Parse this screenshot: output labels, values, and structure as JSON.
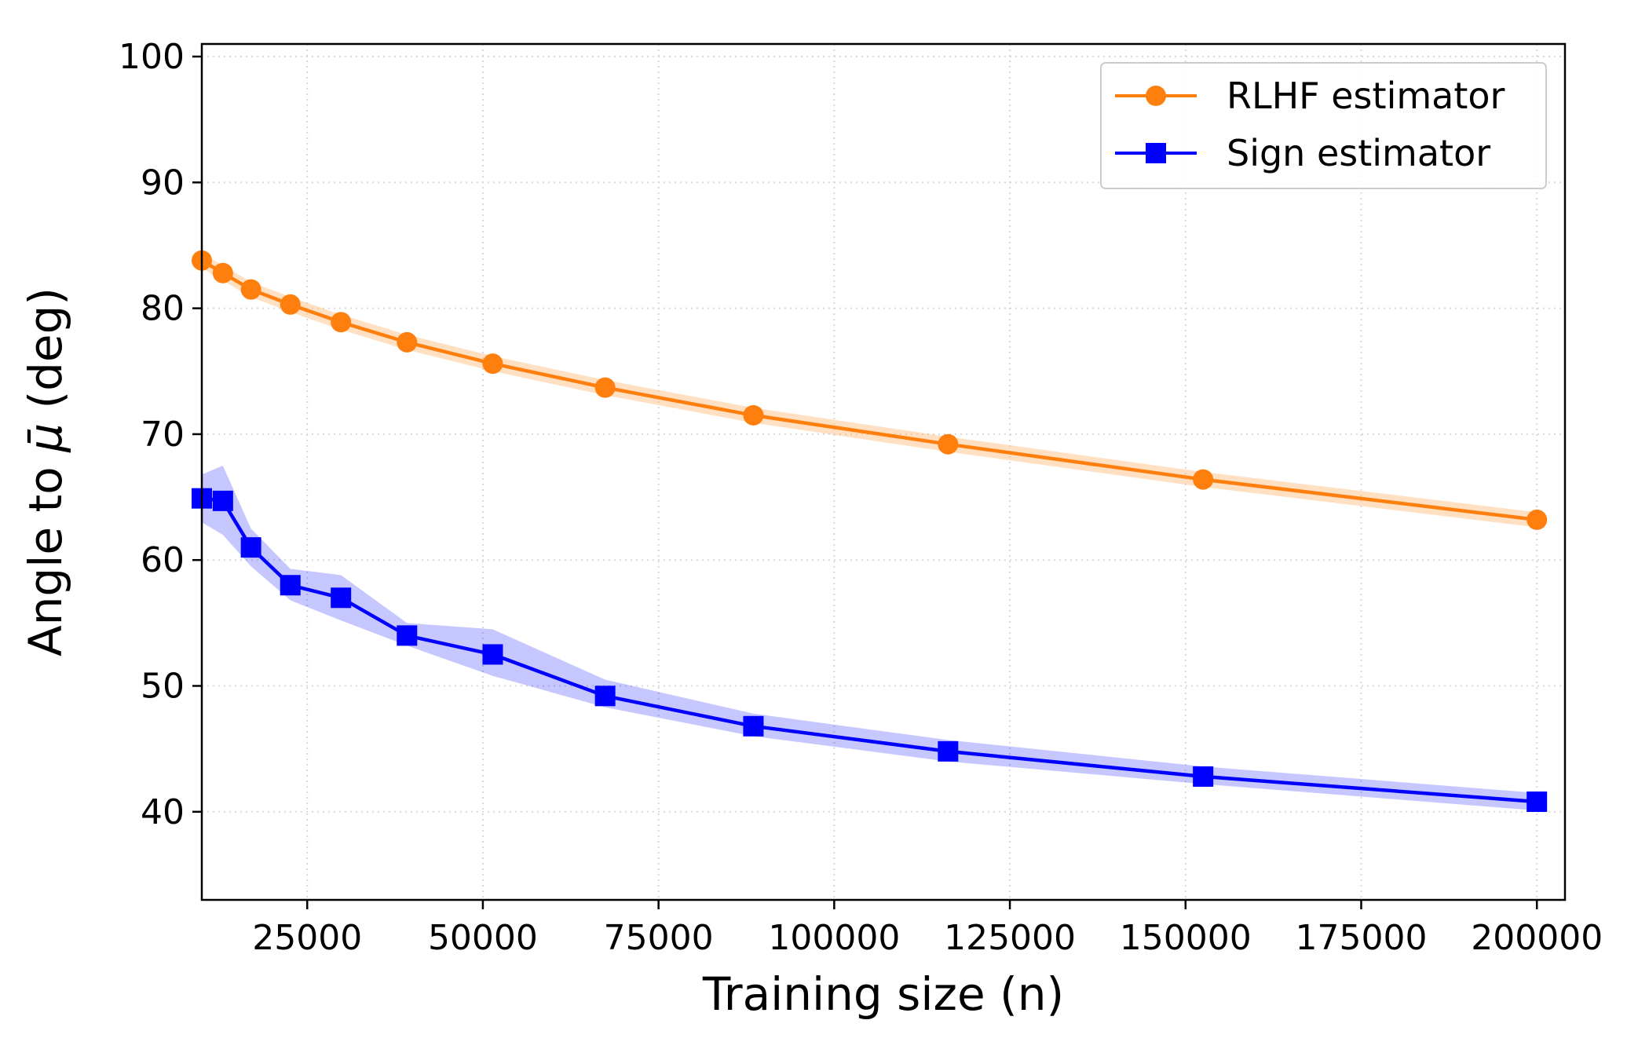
{
  "chart_data": {
    "type": "line",
    "title": "",
    "xlabel": "Training size (n)",
    "ylabel_prefix": "Angle to ",
    "ylabel_symbol": "μ̄",
    "ylabel_suffix": " (deg)",
    "xlim": [
      10000,
      204000
    ],
    "ylim": [
      33,
      101
    ],
    "xticks": [
      25000,
      50000,
      75000,
      100000,
      125000,
      150000,
      175000,
      200000
    ],
    "xtick_labels": [
      "25000",
      "50000",
      "75000",
      "100000",
      "125000",
      "150000",
      "175000",
      "200000"
    ],
    "yticks": [
      40,
      50,
      60,
      70,
      80,
      90,
      100
    ],
    "ytick_labels": [
      "40",
      "50",
      "60",
      "70",
      "80",
      "90",
      "100"
    ],
    "grid": true,
    "legend_position": "top-right",
    "x": [
      10000,
      13000,
      17000,
      22600,
      29800,
      39200,
      51400,
      67400,
      88500,
      116200,
      152500,
      200000
    ],
    "series": [
      {
        "name": "RLHF estimator",
        "color": "#ff7f0e",
        "band_color": "#ffbb78",
        "marker": "circle",
        "values": [
          83.8,
          82.8,
          81.5,
          80.3,
          78.9,
          77.3,
          75.6,
          73.7,
          71.5,
          69.2,
          66.4,
          63.2
        ],
        "lower": [
          83.2,
          82.2,
          80.9,
          79.7,
          78.3,
          76.7,
          75.0,
          73.1,
          70.9,
          68.6,
          65.8,
          62.6
        ],
        "upper": [
          84.4,
          83.4,
          82.1,
          80.9,
          79.5,
          77.9,
          76.2,
          74.3,
          72.1,
          69.8,
          67.0,
          63.8
        ]
      },
      {
        "name": "Sign estimator",
        "color": "#0000ff",
        "band_color": "#0000ff",
        "marker": "square",
        "values": [
          64.9,
          64.7,
          61.0,
          58.0,
          57.0,
          54.0,
          52.5,
          49.2,
          46.8,
          44.8,
          42.8,
          40.8
        ],
        "lower": [
          63.0,
          62.0,
          59.5,
          56.8,
          55.2,
          53.2,
          50.8,
          48.3,
          46.0,
          44.0,
          42.2,
          40.1
        ],
        "upper": [
          66.8,
          67.5,
          62.5,
          59.3,
          58.8,
          55.0,
          54.5,
          50.5,
          47.8,
          45.7,
          43.6,
          41.5
        ]
      }
    ]
  }
}
